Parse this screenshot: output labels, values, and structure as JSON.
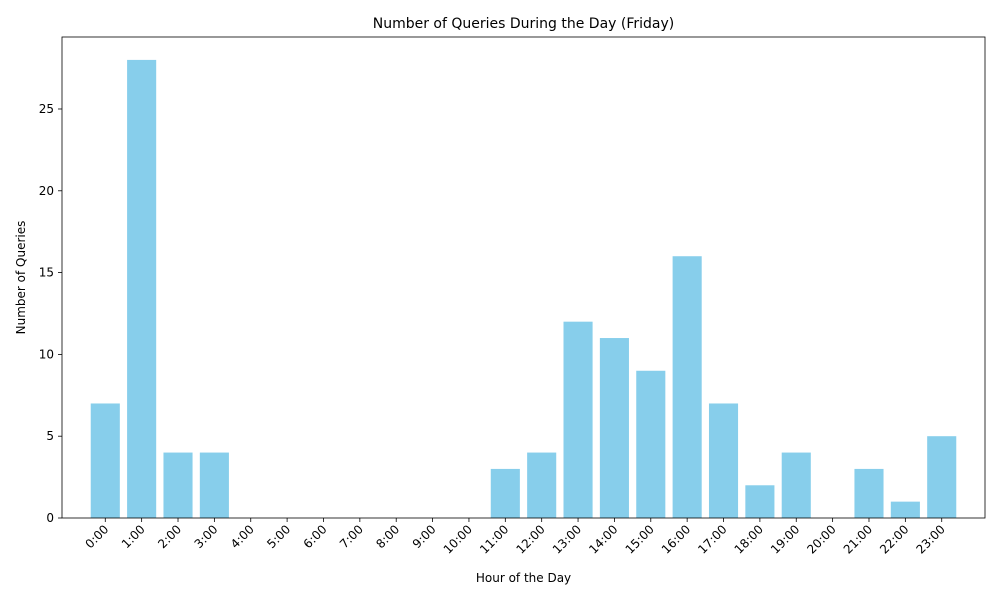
{
  "chart_data": {
    "type": "bar",
    "title": "Number of Queries During the Day (Friday)",
    "xlabel": "Hour of the Day",
    "ylabel": "Number of Queries",
    "categories": [
      "0:00",
      "1:00",
      "2:00",
      "3:00",
      "4:00",
      "5:00",
      "6:00",
      "7:00",
      "8:00",
      "9:00",
      "10:00",
      "11:00",
      "12:00",
      "13:00",
      "14:00",
      "15:00",
      "16:00",
      "17:00",
      "18:00",
      "19:00",
      "20:00",
      "21:00",
      "22:00",
      "23:00"
    ],
    "values": [
      7,
      28,
      4,
      4,
      0,
      0,
      0,
      0,
      0,
      0,
      0,
      3,
      4,
      12,
      11,
      9,
      16,
      7,
      2,
      4,
      0,
      3,
      1,
      5
    ],
    "ylim": [
      0,
      29.4
    ],
    "yticks": [
      0,
      5,
      10,
      15,
      20,
      25
    ],
    "bar_color": "#87ceeb",
    "grid": false,
    "legend": "none"
  }
}
